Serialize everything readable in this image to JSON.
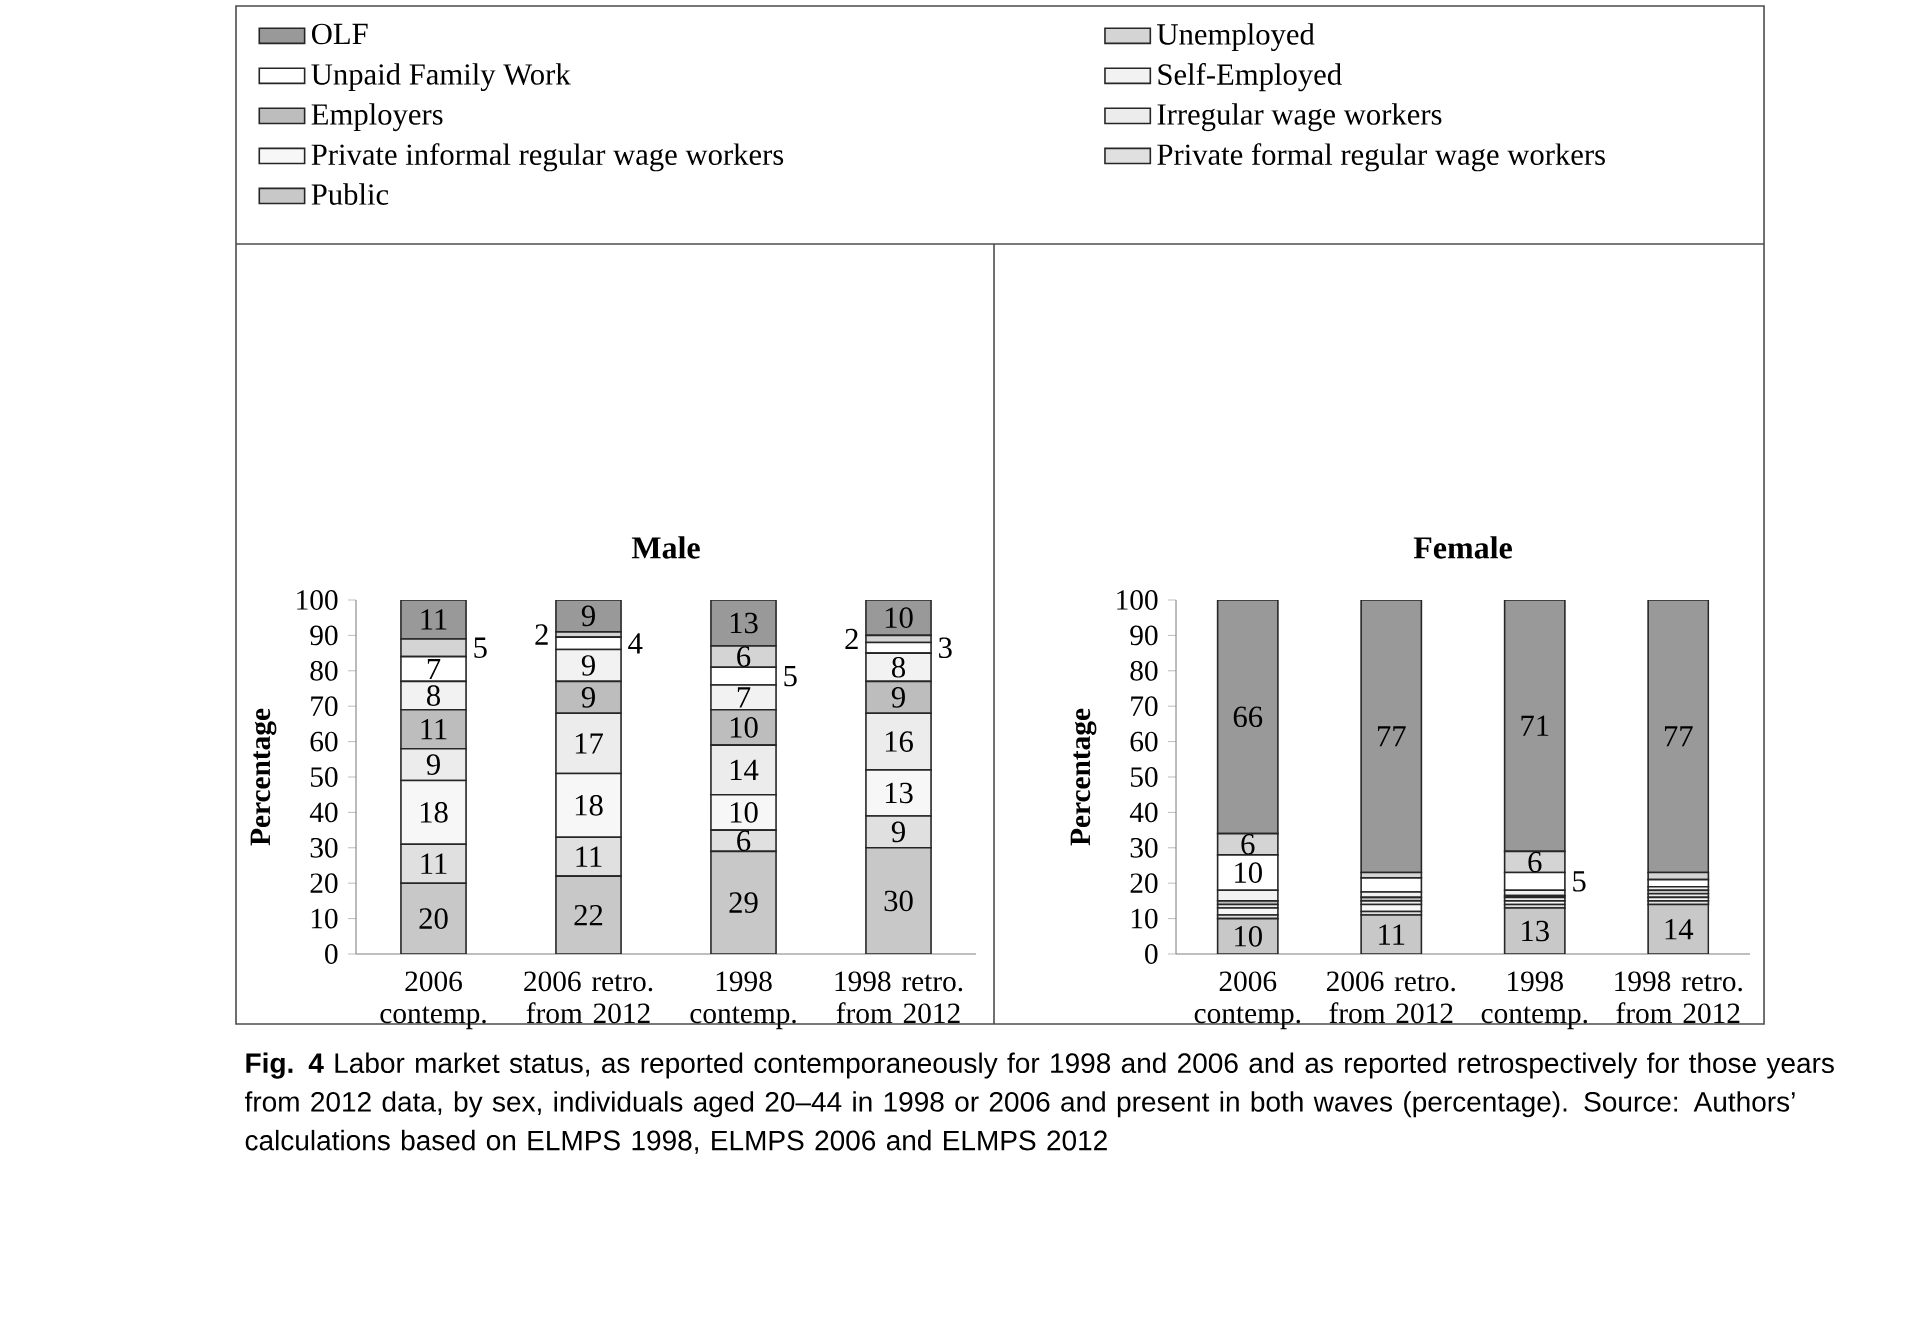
{
  "chart_data": [
    {
      "type": "bar",
      "stacked": true,
      "title": "Male",
      "ylabel": "Percentage",
      "categories": [
        "2006 contemp.",
        "2006 retro. from 2012",
        "1998 contemp.",
        "1998 retro. from 2012"
      ],
      "ylim": [
        0,
        100
      ],
      "yticks": [
        0,
        10,
        20,
        30,
        40,
        50,
        60,
        70,
        80,
        90,
        100
      ],
      "legend": "top",
      "series": [
        {
          "name": "Public",
          "color": "#c8c8c8",
          "values": [
            20,
            22,
            29,
            30
          ],
          "value_labels": [
            "20",
            "22",
            "29",
            "30"
          ]
        },
        {
          "name": "Private formal regular wage workers",
          "color": "#e0e0e0",
          "values": [
            11,
            11,
            6,
            9
          ],
          "value_labels": [
            "11",
            "11",
            "6",
            "9"
          ]
        },
        {
          "name": "Private informal regular wage workers",
          "color": "#f7f7f7",
          "values": [
            18,
            18,
            10,
            13
          ],
          "value_labels": [
            "18",
            "18",
            "10",
            "13"
          ]
        },
        {
          "name": "Irregular wage workers",
          "color": "#ececec",
          "values": [
            9,
            17,
            14,
            16
          ],
          "value_labels": [
            "9",
            "17",
            "14",
            "16"
          ]
        },
        {
          "name": "Employers",
          "color": "#bdbdbd",
          "values": [
            11,
            9,
            10,
            9
          ],
          "value_labels": [
            "11",
            "9",
            "10",
            "9"
          ]
        },
        {
          "name": "Self-Employed",
          "color": "#f2f2f2",
          "values": [
            8,
            9,
            7,
            8
          ],
          "value_labels": [
            "8",
            "9",
            "7",
            "8"
          ]
        },
        {
          "name": "Unpaid Family Work",
          "color": "#ffffff",
          "values": [
            7,
            3.5,
            5,
            3
          ],
          "value_labels": [
            "7",
            "4",
            "5",
            "3"
          ]
        },
        {
          "name": "Unemployed",
          "color": "#d4d4d4",
          "values": [
            5,
            1.5,
            6,
            2
          ],
          "value_labels": [
            "5",
            "2",
            "6",
            "2"
          ]
        },
        {
          "name": "OLF",
          "color": "#999999",
          "values": [
            11,
            9,
            13,
            10
          ],
          "value_labels": [
            "11",
            "9",
            "13",
            "10"
          ]
        }
      ],
      "annotations": [
        "**Fig. 4** Labor market status, as reported contemporaneously for 1998 and 2006 and as reported retrospectively for those years from 2012 data, by sex, individuals aged 20–44 in 1998 or 2006 and present in both waves (percentage).",
        "Source: Authors’ calculations based on ELMPS 1998, ELMPS 2006 and ELMPS 2012"
      ]
    },
    {
      "type": "bar",
      "stacked": true,
      "title": "Female",
      "ylabel": "Percentage",
      "categories": [
        "2006 contemp.",
        "2006 retro. from 2012",
        "1998 contemp.",
        "1998 retro. from 2012"
      ],
      "ylim": [
        0,
        100
      ],
      "yticks": [
        0,
        10,
        20,
        30,
        40,
        50,
        60,
        70,
        80,
        90,
        100
      ],
      "series": [
        {
          "color": "#c8c8c8",
          "values": [
            10,
            11,
            13,
            14
          ],
          "value_labels": [
            "10",
            "11",
            "13",
            "14"
          ]
        },
        {
          "color": "#e0e0e0",
          "values": [
            1,
            1,
            1,
            1
          ],
          "value_labels": [
            null,
            null,
            null,
            null
          ]
        },
        {
          "color": "#f7f7f7",
          "values": [
            2,
            2,
            1,
            1
          ],
          "value_labels": [
            null,
            null,
            null,
            null
          ]
        },
        {
          "color": "#ececec",
          "values": [
            1,
            1,
            1,
            1
          ],
          "value_labels": [
            null,
            null,
            null,
            null
          ]
        },
        {
          "color": "#bdbdbd",
          "values": [
            1,
            1,
            0.5,
            1
          ],
          "value_labels": [
            null,
            null,
            null,
            null
          ]
        },
        {
          "color": "#f2f2f2",
          "values": [
            3,
            1.5,
            1.5,
            1
          ],
          "value_labels": [
            null,
            null,
            null,
            null
          ]
        },
        {
          "color": "#ffffff",
          "values": [
            10,
            4,
            5,
            2
          ],
          "value_labels": [
            "10",
            null,
            "5",
            null
          ]
        },
        {
          "color": "#d4d4d4",
          "values": [
            6,
            1.5,
            6,
            2
          ],
          "value_labels": [
            "6",
            null,
            "6",
            null
          ]
        },
        {
          "color": "#999999",
          "values": [
            66,
            77,
            71,
            77
          ],
          "value_labels": [
            "66",
            "77",
            "71",
            "77"
          ]
        }
      ]
    }
  ]
}
